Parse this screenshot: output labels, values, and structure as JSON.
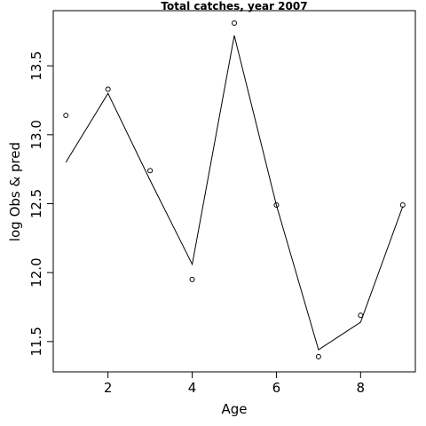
{
  "chart_data": {
    "type": "line",
    "title": "Total catches, year 2007",
    "xlabel": "Age",
    "ylabel": "log Obs & pred",
    "xlim": [
      0.7,
      9.3
    ],
    "ylim": [
      11.28,
      13.9
    ],
    "x_ticks": [
      2,
      4,
      6,
      8
    ],
    "y_ticks": [
      11.5,
      12.0,
      12.5,
      13.0,
      13.5
    ],
    "x_tick_labels": [
      "2",
      "4",
      "6",
      "8"
    ],
    "y_tick_labels": [
      "11.5",
      "12.0",
      "12.5",
      "13.0",
      "13.5"
    ],
    "grid": false,
    "series": [
      {
        "style": "line",
        "x": [
          1,
          2,
          3,
          4,
          5,
          6,
          7,
          8,
          9
        ],
        "values": [
          12.8,
          13.3,
          12.67,
          12.06,
          13.72,
          12.49,
          11.44,
          11.64,
          12.48
        ]
      },
      {
        "style": "points",
        "x": [
          1,
          2,
          3,
          4,
          5,
          6,
          7,
          8,
          9
        ],
        "values": [
          13.14,
          13.33,
          12.74,
          11.95,
          13.81,
          12.49,
          11.39,
          11.69,
          12.49
        ]
      }
    ]
  }
}
